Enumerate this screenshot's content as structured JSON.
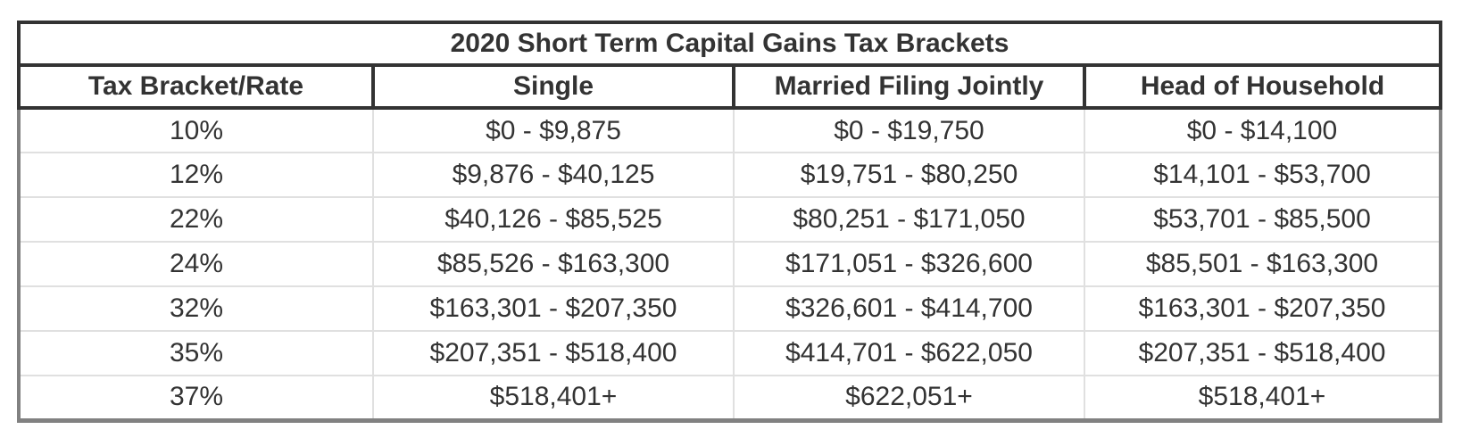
{
  "table": {
    "title": "2020 Short Term Capital Gains Tax Brackets",
    "columns": [
      "Tax Bracket/Rate",
      "Single",
      "Married Filing Jointly",
      "Head of Household"
    ],
    "rows": [
      [
        "10%",
        "$0 - $9,875",
        "$0 - $19,750",
        "$0 - $14,100"
      ],
      [
        "12%",
        "$9,876 - $40,125",
        "$19,751 - $80,250",
        "$14,101 - $53,700"
      ],
      [
        "22%",
        "$40,126 - $85,525",
        "$80,251 - $171,050",
        "$53,701 - $85,500"
      ],
      [
        "24%",
        "$85,526 - $163,300",
        "$171,051 - $326,600",
        "$85,501 - $163,300"
      ],
      [
        "32%",
        "$163,301 - $207,350",
        "$326,601 - $414,700",
        "$163,301 - $207,350"
      ],
      [
        "35%",
        "$207,351 - $518,400",
        "$414,701 - $622,050",
        "$207,351 - $518,400"
      ],
      [
        "37%",
        "$518,401+",
        "$622,051+",
        "$518,401+"
      ]
    ],
    "colors": {
      "text": "#333333",
      "header_border": "#333333",
      "body_border": "#818181",
      "row_separator": "#e0e0e0",
      "background": "#ffffff"
    }
  },
  "chart_data": {
    "type": "table",
    "title": "2020 Short Term Capital Gains Tax Brackets",
    "columns": [
      "Tax Bracket/Rate",
      "Single",
      "Married Filing Jointly",
      "Head of Household"
    ],
    "rows": [
      [
        "10%",
        "$0 - $9,875",
        "$0 - $19,750",
        "$0 - $14,100"
      ],
      [
        "12%",
        "$9,876 - $40,125",
        "$19,751 - $80,250",
        "$14,101 - $53,700"
      ],
      [
        "22%",
        "$40,126 - $85,525",
        "$80,251 - $171,050",
        "$53,701 - $85,500"
      ],
      [
        "24%",
        "$85,526 - $163,300",
        "$171,051 - $326,600",
        "$85,501 - $163,300"
      ],
      [
        "32%",
        "$163,301 - $207,350",
        "$326,601 - $414,700",
        "$163,301 - $207,350"
      ],
      [
        "35%",
        "$207,351 - $518,400",
        "$414,701 - $622,050",
        "$207,351 - $518,400"
      ],
      [
        "37%",
        "$518,401+",
        "$622,051+",
        "$518,401+"
      ]
    ]
  }
}
